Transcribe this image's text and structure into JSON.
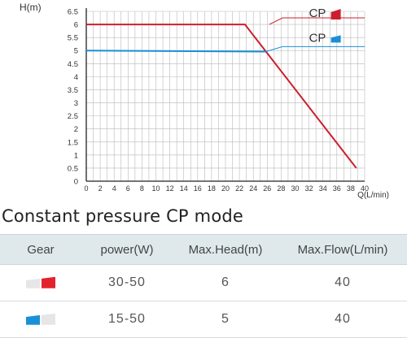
{
  "chart_data": {
    "type": "line",
    "ylabel": "H(m)",
    "xlabel": "Q(L/min)",
    "xlim": [
      0,
      40
    ],
    "ylim": [
      0,
      6.5
    ],
    "xticks": [
      0,
      2,
      4,
      6,
      8,
      10,
      12,
      14,
      16,
      18,
      20,
      22,
      24,
      26,
      28,
      30,
      32,
      34,
      36,
      38,
      40
    ],
    "yticks": [
      0,
      0.5,
      1,
      1.5,
      2,
      2.5,
      3,
      3.5,
      4,
      4.5,
      5,
      5.5,
      6,
      6.5
    ],
    "grid": true,
    "series": [
      {
        "name": "CP",
        "color": "#cc1f2e",
        "legend_icon": "red-gear-icon",
        "x": [
          0,
          22.8,
          38.8
        ],
        "y": [
          6.0,
          6.0,
          0.5
        ]
      },
      {
        "name": "CP",
        "color": "#1a8fd6",
        "legend_icon": "blue-gear-icon",
        "x": [
          0,
          25.8
        ],
        "y": [
          5.0,
          4.96
        ]
      }
    ]
  },
  "section_title": "Constant pressure CP mode",
  "table": {
    "headers": [
      "Gear",
      "power(W)",
      "Max.Head(m)",
      "Max.Flow(L/min)"
    ],
    "rows": [
      {
        "gear_icon": "red-gear-icon",
        "gear_color": "#e3232c",
        "power": "30-50",
        "max_head": "6",
        "max_flow": "40"
      },
      {
        "gear_icon": "blue-gear-icon",
        "gear_color": "#1a90d8",
        "power": "15-50",
        "max_head": "5",
        "max_flow": "40"
      }
    ]
  },
  "colors": {
    "header_bg": "#dfe9ec",
    "grid": "#b9b9b9",
    "inactive_gear": "#e6e6e6"
  }
}
